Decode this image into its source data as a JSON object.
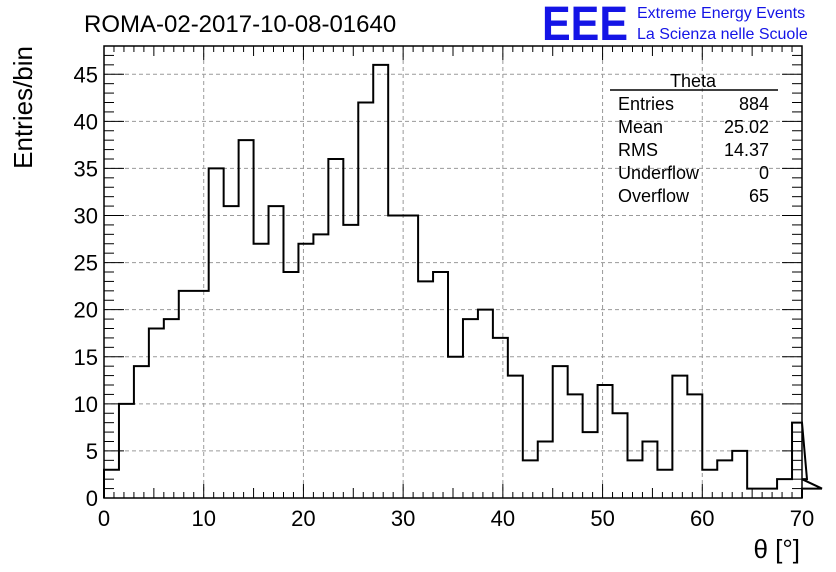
{
  "chart_data": {
    "type": "bar",
    "title": "ROMA-02-2017-10-08-01640",
    "xlabel": "θ [°]",
    "ylabel": "Entries/bin",
    "xlim": [
      0,
      70
    ],
    "ylim": [
      0,
      48
    ],
    "x_ticks": [
      "0",
      "10",
      "20",
      "30",
      "40",
      "50",
      "60",
      "70"
    ],
    "y_ticks": [
      "0",
      "5",
      "10",
      "15",
      "20",
      "25",
      "30",
      "35",
      "40",
      "45"
    ],
    "grid": true,
    "bin_edges_start": 0,
    "bin_width": 1.5,
    "values": [
      3,
      10,
      14,
      18,
      19,
      22,
      22,
      35,
      31,
      38,
      27,
      31,
      24,
      27,
      28,
      36,
      29,
      42,
      46,
      30,
      30,
      23,
      24,
      15,
      19,
      20,
      17,
      13,
      4,
      6,
      14,
      11,
      7,
      12,
      9,
      4,
      6,
      3,
      13,
      11,
      3,
      4,
      5,
      1,
      1,
      2,
      8,
      2,
      1
    ]
  },
  "stats_box": {
    "title": "Theta",
    "rows": [
      {
        "label": "Entries",
        "value": "884"
      },
      {
        "label": "Mean",
        "value": "25.02"
      },
      {
        "label": "RMS",
        "value": "14.37"
      },
      {
        "label": "Underflow",
        "value": "0"
      },
      {
        "label": "Overflow",
        "value": "65"
      }
    ]
  },
  "logo": {
    "mark": "EEE",
    "line1": "Extreme Energy Events",
    "line2": "La Scienza nelle Scuole"
  }
}
